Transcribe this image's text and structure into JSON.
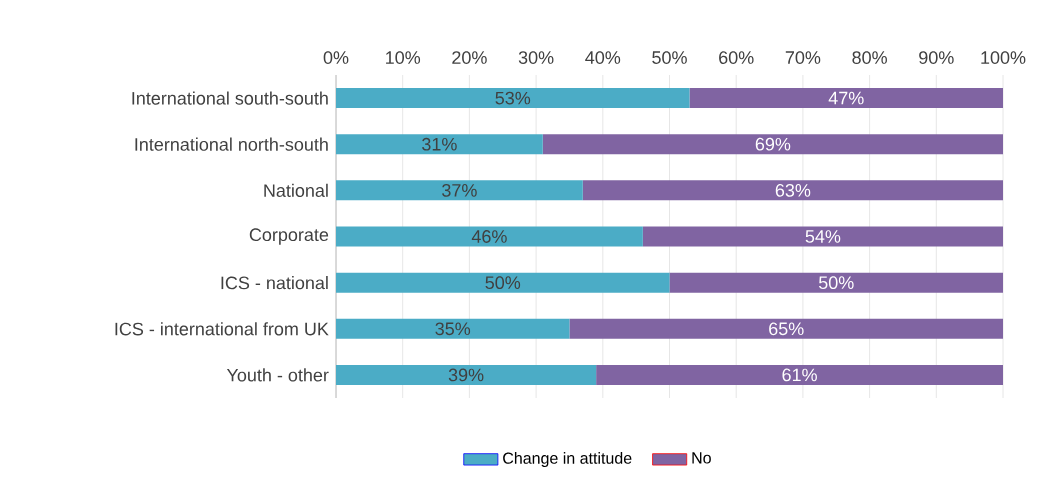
{
  "chart_data": {
    "type": "bar",
    "orientation": "horizontal",
    "stacked": true,
    "categories": [
      "International south-south",
      "International north-south",
      "National",
      "Corporate",
      "ICS - national",
      "ICS - international from UK",
      "Youth - other"
    ],
    "series": [
      {
        "name": "Change in attitude",
        "color": "#4bacc6",
        "values": [
          53,
          31,
          37,
          46,
          50,
          35,
          39
        ],
        "value_labels": [
          "53%",
          "31%",
          "37%",
          "46%",
          "50%",
          "35%",
          "39%"
        ]
      },
      {
        "name": "No",
        "color": "#8064a2",
        "values": [
          47,
          69,
          63,
          54,
          50,
          65,
          61
        ],
        "value_labels": [
          "47%",
          "69%",
          "63%",
          "54%",
          "50%",
          "65%",
          "61%"
        ]
      }
    ],
    "xlim": [
      0,
      100
    ],
    "xticks": [
      {
        "value": 0,
        "label": "0%"
      },
      {
        "value": 10,
        "label": "10%"
      },
      {
        "value": 20,
        "label": "20%"
      },
      {
        "value": 30,
        "label": "30%"
      },
      {
        "value": 40,
        "label": "40%"
      },
      {
        "value": 50,
        "label": "50%"
      },
      {
        "value": 60,
        "label": "60%"
      },
      {
        "value": 70,
        "label": "70%"
      },
      {
        "value": 80,
        "label": "80%"
      },
      {
        "value": 90,
        "label": "90%"
      },
      {
        "value": 100,
        "label": "100%"
      }
    ],
    "grid": "x",
    "legend": "bottom"
  }
}
